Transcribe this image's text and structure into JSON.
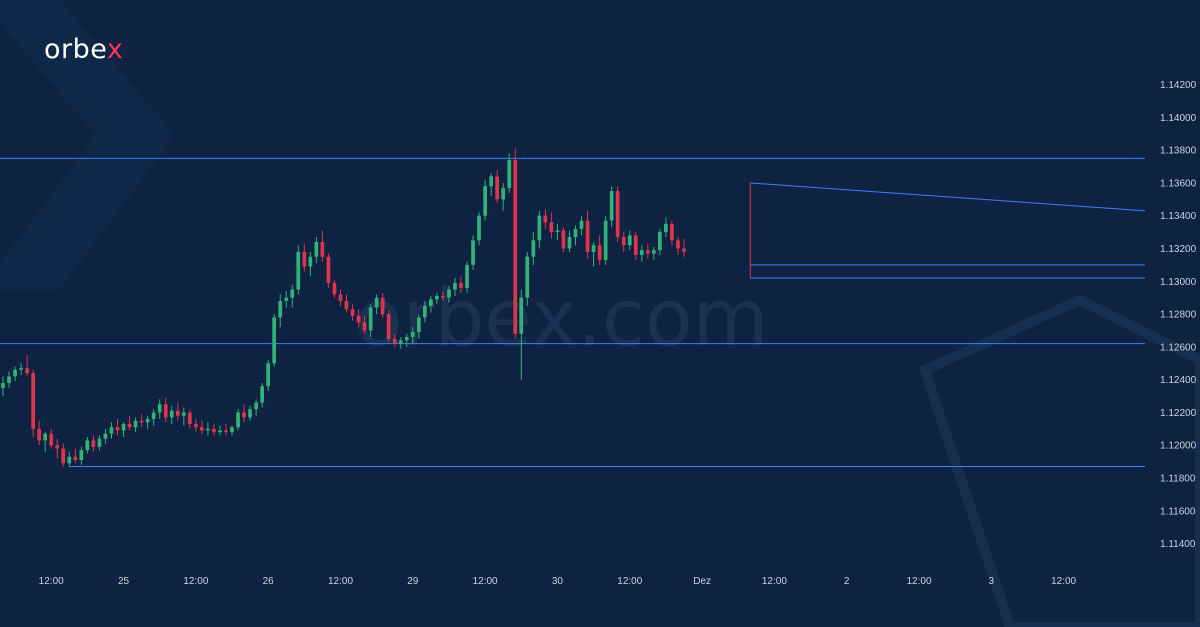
{
  "brand": {
    "name_main": "orbe",
    "name_accent": "x",
    "accent_color": "#ff3358"
  },
  "watermark": "orbex.com",
  "colors": {
    "background": "#0e2341",
    "up": "#2fb37a",
    "down": "#e0334d",
    "line": "#3f7cff",
    "text": "#c9d3e0"
  },
  "chart_data": {
    "type": "candlestick",
    "title": "",
    "xlabel": "",
    "ylabel": "",
    "ylim": [
      1.113,
      1.1435
    ],
    "y_ticks": [
      "1.11400",
      "1.11600",
      "1.11800",
      "1.12000",
      "1.12200",
      "1.12400",
      "1.12600",
      "1.12800",
      "1.13000",
      "1.13200",
      "1.13400",
      "1.13600",
      "1.13800",
      "1.14000",
      "1.14200"
    ],
    "x_ticks": [
      "12:00",
      "25",
      "12:00",
      "26",
      "12:00",
      "29",
      "12:00",
      "30",
      "12:00",
      "Dez",
      "12:00",
      "2",
      "12:00",
      "3",
      "12:00"
    ],
    "x_tick_slots": [
      8,
      20,
      32,
      44,
      56,
      68,
      80,
      92,
      104,
      116,
      128,
      140,
      152,
      164,
      176
    ],
    "x_slots_total": 190,
    "grid": false,
    "horizontal_levels": [
      1.1375,
      1.1262,
      1.1187
    ],
    "triangle": {
      "upper": {
        "from": [
          124,
          1.136
        ],
        "to": [
          190,
          1.1343
        ]
      },
      "lower": {
        "from": [
          124,
          1.131
        ],
        "to": [
          190,
          1.131
        ]
      },
      "base_low": 1.1302
    },
    "candles_ohlc": [
      [
        1.1235,
        1.1242,
        1.123,
        1.1238
      ],
      [
        1.1238,
        1.1245,
        1.1235,
        1.1242
      ],
      [
        1.1242,
        1.1248,
        1.1239,
        1.1246
      ],
      [
        1.1246,
        1.125,
        1.1243,
        1.1247
      ],
      [
        1.1247,
        1.1255,
        1.1242,
        1.1244
      ],
      [
        1.1244,
        1.1246,
        1.1205,
        1.121
      ],
      [
        1.121,
        1.1215,
        1.12,
        1.1203
      ],
      [
        1.1203,
        1.1208,
        1.1196,
        1.1207
      ],
      [
        1.1207,
        1.121,
        1.1198,
        1.12
      ],
      [
        1.12,
        1.1204,
        1.1192,
        1.1198
      ],
      [
        1.1198,
        1.1201,
        1.1187,
        1.1189
      ],
      [
        1.1189,
        1.1196,
        1.1187,
        1.1193
      ],
      [
        1.1193,
        1.1198,
        1.1189,
        1.1191
      ],
      [
        1.1191,
        1.1199,
        1.1188,
        1.1197
      ],
      [
        1.1197,
        1.1205,
        1.1195,
        1.1203
      ],
      [
        1.1203,
        1.1206,
        1.1196,
        1.1199
      ],
      [
        1.1199,
        1.1206,
        1.1197,
        1.1204
      ],
      [
        1.1204,
        1.121,
        1.1201,
        1.1207
      ],
      [
        1.1207,
        1.1214,
        1.1204,
        1.1211
      ],
      [
        1.1211,
        1.1216,
        1.1206,
        1.1209
      ],
      [
        1.1209,
        1.1214,
        1.1205,
        1.1213
      ],
      [
        1.1213,
        1.1218,
        1.1209,
        1.1211
      ],
      [
        1.1211,
        1.1217,
        1.1208,
        1.1215
      ],
      [
        1.1215,
        1.1219,
        1.1211,
        1.1214
      ],
      [
        1.1214,
        1.1218,
        1.121,
        1.1216
      ],
      [
        1.1216,
        1.1222,
        1.1212,
        1.122
      ],
      [
        1.122,
        1.1228,
        1.1216,
        1.1225
      ],
      [
        1.1225,
        1.1229,
        1.1214,
        1.1217
      ],
      [
        1.1217,
        1.1224,
        1.1213,
        1.1221
      ],
      [
        1.1221,
        1.1226,
        1.1215,
        1.1218
      ],
      [
        1.1218,
        1.1223,
        1.1212,
        1.122
      ],
      [
        1.122,
        1.1222,
        1.121,
        1.1213
      ],
      [
        1.1213,
        1.1216,
        1.1208,
        1.1211
      ],
      [
        1.1211,
        1.1215,
        1.1207,
        1.1209
      ],
      [
        1.1209,
        1.1214,
        1.1206,
        1.121
      ],
      [
        1.121,
        1.1213,
        1.1206,
        1.1208
      ],
      [
        1.1208,
        1.1212,
        1.1206,
        1.1209
      ],
      [
        1.1209,
        1.1213,
        1.1206,
        1.1208
      ],
      [
        1.1208,
        1.1212,
        1.1206,
        1.1211
      ],
      [
        1.1211,
        1.1222,
        1.1209,
        1.122
      ],
      [
        1.122,
        1.1225,
        1.1214,
        1.1217
      ],
      [
        1.1217,
        1.1224,
        1.1215,
        1.1222
      ],
      [
        1.1222,
        1.1228,
        1.1218,
        1.1226
      ],
      [
        1.1226,
        1.1238,
        1.1223,
        1.1236
      ],
      [
        1.1236,
        1.1252,
        1.1233,
        1.125
      ],
      [
        1.125,
        1.128,
        1.1248,
        1.1278
      ],
      [
        1.1278,
        1.1292,
        1.1272,
        1.1288
      ],
      [
        1.1288,
        1.1294,
        1.1284,
        1.129
      ],
      [
        1.129,
        1.1298,
        1.1284,
        1.1295
      ],
      [
        1.1295,
        1.1322,
        1.1292,
        1.1318
      ],
      [
        1.1318,
        1.1323,
        1.1306,
        1.1309
      ],
      [
        1.1309,
        1.1318,
        1.1303,
        1.1315
      ],
      [
        1.1315,
        1.1327,
        1.1311,
        1.1324
      ],
      [
        1.1324,
        1.1331,
        1.1312,
        1.1315
      ],
      [
        1.1315,
        1.1317,
        1.1296,
        1.1299
      ],
      [
        1.1299,
        1.1301,
        1.129,
        1.1292
      ],
      [
        1.1292,
        1.1295,
        1.1285,
        1.1288
      ],
      [
        1.1288,
        1.1292,
        1.1281,
        1.1283
      ],
      [
        1.1283,
        1.1286,
        1.1276,
        1.1279
      ],
      [
        1.1279,
        1.1283,
        1.1272,
        1.1275
      ],
      [
        1.1275,
        1.1279,
        1.1268,
        1.127
      ],
      [
        1.127,
        1.1286,
        1.1266,
        1.1284
      ],
      [
        1.1284,
        1.1292,
        1.128,
        1.129
      ],
      [
        1.129,
        1.1293,
        1.1278,
        1.128
      ],
      [
        1.128,
        1.1282,
        1.1263,
        1.1265
      ],
      [
        1.1265,
        1.1268,
        1.126,
        1.1262
      ],
      [
        1.1262,
        1.1266,
        1.1259,
        1.1264
      ],
      [
        1.1264,
        1.1268,
        1.126,
        1.1266
      ],
      [
        1.1266,
        1.1272,
        1.1262,
        1.1269
      ],
      [
        1.1269,
        1.128,
        1.1265,
        1.1278
      ],
      [
        1.1278,
        1.1288,
        1.1275,
        1.1285
      ],
      [
        1.1285,
        1.1291,
        1.1281,
        1.1289
      ],
      [
        1.1289,
        1.1293,
        1.1286,
        1.1291
      ],
      [
        1.1291,
        1.1294,
        1.1288,
        1.129
      ],
      [
        1.129,
        1.1297,
        1.1287,
        1.1295
      ],
      [
        1.1295,
        1.1302,
        1.1291,
        1.1299
      ],
      [
        1.1299,
        1.1303,
        1.1293,
        1.1296
      ],
      [
        1.1296,
        1.1312,
        1.1293,
        1.131
      ],
      [
        1.131,
        1.1328,
        1.1307,
        1.1325
      ],
      [
        1.1325,
        1.1342,
        1.1322,
        1.134
      ],
      [
        1.134,
        1.1362,
        1.1337,
        1.1358
      ],
      [
        1.1358,
        1.1366,
        1.1352,
        1.1364
      ],
      [
        1.1364,
        1.1368,
        1.1348,
        1.135
      ],
      [
        1.135,
        1.136,
        1.1343,
        1.1357
      ],
      [
        1.1357,
        1.1378,
        1.1354,
        1.1374
      ],
      [
        1.1374,
        1.1381,
        1.1265,
        1.1268
      ],
      [
        1.1268,
        1.1295,
        1.124,
        1.129
      ],
      [
        1.129,
        1.1318,
        1.1285,
        1.1315
      ],
      [
        1.1315,
        1.133,
        1.131,
        1.1325
      ],
      [
        1.1325,
        1.1343,
        1.132,
        1.134
      ],
      [
        1.134,
        1.1344,
        1.1332,
        1.1336
      ],
      [
        1.1336,
        1.1342,
        1.1326,
        1.133
      ],
      [
        1.133,
        1.1335,
        1.1325,
        1.1331
      ],
      [
        1.1331,
        1.1333,
        1.1318,
        1.132
      ],
      [
        1.132,
        1.1331,
        1.1318,
        1.1327
      ],
      [
        1.1327,
        1.1334,
        1.1322,
        1.1332
      ],
      [
        1.1332,
        1.134,
        1.1328,
        1.1337
      ],
      [
        1.1337,
        1.1343,
        1.1314,
        1.1318
      ],
      [
        1.1318,
        1.1324,
        1.1309,
        1.1322
      ],
      [
        1.1322,
        1.1328,
        1.131,
        1.1313
      ],
      [
        1.1313,
        1.134,
        1.131,
        1.1337
      ],
      [
        1.1337,
        1.1358,
        1.1333,
        1.1355
      ],
      [
        1.1355,
        1.1358,
        1.1324,
        1.1327
      ],
      [
        1.1327,
        1.133,
        1.1318,
        1.1322
      ],
      [
        1.1322,
        1.1331,
        1.1319,
        1.1328
      ],
      [
        1.1328,
        1.133,
        1.1313,
        1.1316
      ],
      [
        1.1316,
        1.1322,
        1.1312,
        1.1319
      ],
      [
        1.1319,
        1.1323,
        1.1314,
        1.1317
      ],
      [
        1.1317,
        1.1321,
        1.1313,
        1.1319
      ],
      [
        1.1319,
        1.1332,
        1.1316,
        1.133
      ],
      [
        1.133,
        1.1339,
        1.1327,
        1.1335
      ],
      [
        1.1335,
        1.1337,
        1.1322,
        1.1325
      ],
      [
        1.1325,
        1.1327,
        1.1316,
        1.132
      ],
      [
        1.132,
        1.1326,
        1.1315,
        1.1318
      ]
    ]
  }
}
